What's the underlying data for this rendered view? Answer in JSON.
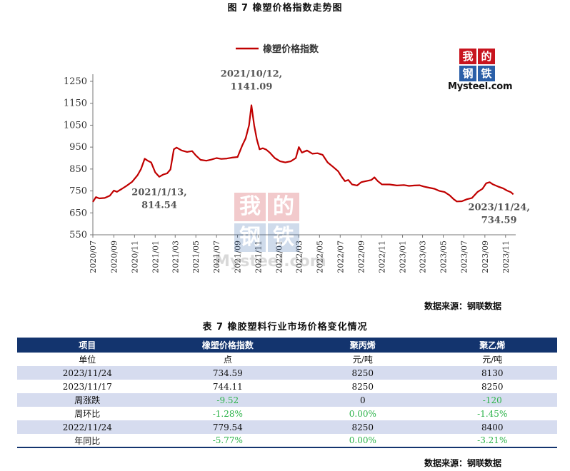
{
  "figure_title": "图 7    橡塑价格指数走势图",
  "source_label": "数据来源：钢联数据",
  "logo": {
    "chars": [
      "我",
      "的",
      "钢",
      "铁"
    ],
    "word": "Mysteel.com"
  },
  "colors": {
    "line": "#c00000",
    "table_header": "#13346e",
    "row_shade": "#d6dcef",
    "negative": "#2db34a"
  },
  "chart_data": {
    "type": "line",
    "legend_position": "top-center",
    "grid": false,
    "ylim": [
      550,
      1250
    ],
    "yticks": [
      550,
      650,
      750,
      850,
      950,
      1050,
      1150,
      1250
    ],
    "x_range": [
      "2020-07-01",
      "2023-12-01"
    ],
    "xticks": [
      "2020/07",
      "2020/09",
      "2020/11",
      "2021/01",
      "2021/03",
      "2021/05",
      "2021/07",
      "2021/09",
      "2021/11",
      "2022/01",
      "2022/03",
      "2022/05",
      "2022/07",
      "2022/09",
      "2022/11",
      "2023/01",
      "2023/03",
      "2023/05",
      "2023/07",
      "2023/09",
      "2023/11"
    ],
    "series": [
      {
        "name": "橡塑价格指数",
        "points": [
          [
            "2020-07-01",
            700
          ],
          [
            "2020-07-10",
            722
          ],
          [
            "2020-07-20",
            716
          ],
          [
            "2020-08-05",
            718
          ],
          [
            "2020-08-20",
            728
          ],
          [
            "2020-09-01",
            752
          ],
          [
            "2020-09-10",
            746
          ],
          [
            "2020-09-25",
            760
          ],
          [
            "2020-10-10",
            775
          ],
          [
            "2020-10-25",
            792
          ],
          [
            "2020-11-10",
            822
          ],
          [
            "2020-11-20",
            850
          ],
          [
            "2020-12-01",
            897
          ],
          [
            "2020-12-10",
            888
          ],
          [
            "2020-12-20",
            880
          ],
          [
            "2021-01-01",
            835
          ],
          [
            "2021-01-13",
            814.54
          ],
          [
            "2021-01-25",
            825
          ],
          [
            "2021-02-05",
            830
          ],
          [
            "2021-02-15",
            848
          ],
          [
            "2021-02-25",
            940
          ],
          [
            "2021-03-05",
            948
          ],
          [
            "2021-03-20",
            935
          ],
          [
            "2021-04-05",
            928
          ],
          [
            "2021-04-20",
            932
          ],
          [
            "2021-05-01",
            912
          ],
          [
            "2021-05-15",
            892
          ],
          [
            "2021-06-01",
            888
          ],
          [
            "2021-06-15",
            893
          ],
          [
            "2021-07-01",
            900
          ],
          [
            "2021-07-15",
            896
          ],
          [
            "2021-08-01",
            898
          ],
          [
            "2021-08-15",
            902
          ],
          [
            "2021-09-01",
            905
          ],
          [
            "2021-09-15",
            958
          ],
          [
            "2021-09-25",
            990
          ],
          [
            "2021-10-05",
            1050
          ],
          [
            "2021-10-12",
            1141.09
          ],
          [
            "2021-10-20",
            1050
          ],
          [
            "2021-10-28",
            985
          ],
          [
            "2021-11-05",
            940
          ],
          [
            "2021-11-15",
            945
          ],
          [
            "2021-11-25",
            938
          ],
          [
            "2021-12-05",
            925
          ],
          [
            "2021-12-20",
            900
          ],
          [
            "2022-01-05",
            885
          ],
          [
            "2022-01-20",
            880
          ],
          [
            "2022-02-05",
            885
          ],
          [
            "2022-02-20",
            900
          ],
          [
            "2022-03-01",
            950
          ],
          [
            "2022-03-10",
            925
          ],
          [
            "2022-03-25",
            935
          ],
          [
            "2022-04-10",
            920
          ],
          [
            "2022-04-25",
            922
          ],
          [
            "2022-05-10",
            915
          ],
          [
            "2022-05-25",
            880
          ],
          [
            "2022-06-10",
            860
          ],
          [
            "2022-06-25",
            840
          ],
          [
            "2022-07-05",
            815
          ],
          [
            "2022-07-15",
            795
          ],
          [
            "2022-07-25",
            800
          ],
          [
            "2022-08-05",
            780
          ],
          [
            "2022-08-20",
            775
          ],
          [
            "2022-09-01",
            790
          ],
          [
            "2022-09-15",
            795
          ],
          [
            "2022-10-01",
            800
          ],
          [
            "2022-10-10",
            812
          ],
          [
            "2022-10-20",
            795
          ],
          [
            "2022-11-01",
            780
          ],
          [
            "2022-11-24",
            779.54
          ],
          [
            "2022-12-15",
            775
          ],
          [
            "2023-01-05",
            777
          ],
          [
            "2023-01-20",
            773
          ],
          [
            "2023-02-05",
            775
          ],
          [
            "2023-02-20",
            776
          ],
          [
            "2023-03-05",
            770
          ],
          [
            "2023-03-20",
            765
          ],
          [
            "2023-04-05",
            760
          ],
          [
            "2023-04-20",
            750
          ],
          [
            "2023-05-05",
            745
          ],
          [
            "2023-05-20",
            730
          ],
          [
            "2023-06-01",
            712
          ],
          [
            "2023-06-10",
            702
          ],
          [
            "2023-06-25",
            703
          ],
          [
            "2023-07-10",
            712
          ],
          [
            "2023-07-25",
            718
          ],
          [
            "2023-08-10",
            745
          ],
          [
            "2023-08-25",
            760
          ],
          [
            "2023-09-05",
            785
          ],
          [
            "2023-09-15",
            790
          ],
          [
            "2023-09-25",
            780
          ],
          [
            "2023-10-10",
            770
          ],
          [
            "2023-10-25",
            762
          ],
          [
            "2023-11-05",
            752
          ],
          [
            "2023-11-17",
            744.11
          ],
          [
            "2023-11-24",
            734.59
          ]
        ]
      }
    ],
    "annotations": [
      {
        "date": "2021-10-12",
        "line1": "2021/10/12,",
        "line2": "1141.09"
      },
      {
        "date": "2021-01-13",
        "line1": "2021/1/13,",
        "line2": "814.54"
      },
      {
        "date": "2023-11-24",
        "line1": "2023/11/24,",
        "line2": "734.59"
      }
    ]
  },
  "table": {
    "title": "表 7 橡胶塑料行业市场价格变化情况",
    "headers": [
      "项目",
      "橡塑价格指数",
      "聚丙烯",
      "聚乙烯"
    ],
    "rows": [
      [
        "单位",
        "点",
        "元/吨",
        "元/吨"
      ],
      [
        "2023/11/24",
        "734.59",
        "8250",
        "8130"
      ],
      [
        "2023/11/17",
        "744.11",
        "8250",
        "8250"
      ],
      [
        "周涨跌",
        "-9.52",
        "0",
        "-120"
      ],
      [
        "周环比",
        "-1.28%",
        "0.00%",
        "-1.45%"
      ],
      [
        "2022/11/24",
        "779.54",
        "8250",
        "8400"
      ],
      [
        "年同比",
        "-5.77%",
        "0.00%",
        "-3.21%"
      ]
    ]
  }
}
